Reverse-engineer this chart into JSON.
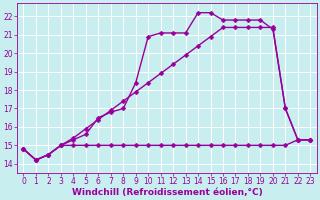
{
  "xlabel": "Windchill (Refroidissement éolien,°C)",
  "bg_color": "#c8eef0",
  "grid_color": "#ffffff",
  "line_color": "#990099",
  "xlim": [
    -0.5,
    23.5
  ],
  "ylim": [
    13.5,
    22.7
  ],
  "xticks": [
    0,
    1,
    2,
    3,
    4,
    5,
    6,
    7,
    8,
    9,
    10,
    11,
    12,
    13,
    14,
    15,
    16,
    17,
    18,
    19,
    20,
    21,
    22,
    23
  ],
  "yticks": [
    14,
    15,
    16,
    17,
    18,
    19,
    20,
    21,
    22
  ],
  "curve1_x": [
    0,
    1,
    2,
    3,
    4,
    5,
    6,
    7,
    8,
    9,
    10,
    11,
    12,
    13,
    14,
    15,
    16,
    17,
    18,
    19,
    20,
    21,
    22,
    23
  ],
  "curve1_y": [
    14.8,
    14.2,
    14.5,
    15.0,
    15.3,
    15.6,
    16.5,
    16.8,
    17.0,
    18.4,
    20.9,
    21.1,
    21.1,
    21.1,
    22.2,
    22.2,
    21.8,
    21.8,
    21.8,
    21.8,
    21.3,
    17.0,
    15.3,
    15.3
  ],
  "curve2_x": [
    0,
    1,
    2,
    3,
    4,
    5,
    6,
    7,
    8,
    9,
    10,
    11,
    12,
    13,
    14,
    15,
    16,
    17,
    18,
    19,
    20,
    21,
    22,
    23
  ],
  "curve2_y": [
    14.8,
    14.2,
    14.5,
    15.0,
    15.4,
    15.9,
    16.4,
    16.9,
    17.4,
    17.9,
    18.4,
    18.9,
    19.4,
    19.9,
    20.4,
    20.9,
    21.4,
    21.4,
    21.4,
    21.4,
    21.4,
    17.0,
    15.3,
    15.3
  ],
  "curve3_x": [
    0,
    1,
    2,
    3,
    4,
    5,
    6,
    7,
    8,
    9,
    10,
    11,
    12,
    13,
    14,
    15,
    16,
    17,
    18,
    19,
    20,
    21,
    22,
    23
  ],
  "curve3_y": [
    14.8,
    14.2,
    14.5,
    15.0,
    15.0,
    15.0,
    15.0,
    15.0,
    15.0,
    15.0,
    15.0,
    15.0,
    15.0,
    15.0,
    15.0,
    15.0,
    15.0,
    15.0,
    15.0,
    15.0,
    15.0,
    15.0,
    15.3,
    15.3
  ],
  "marker": "D",
  "marker_size": 2.5,
  "line_width": 1.0,
  "xlabel_fontsize": 6.5,
  "tick_fontsize": 5.5
}
